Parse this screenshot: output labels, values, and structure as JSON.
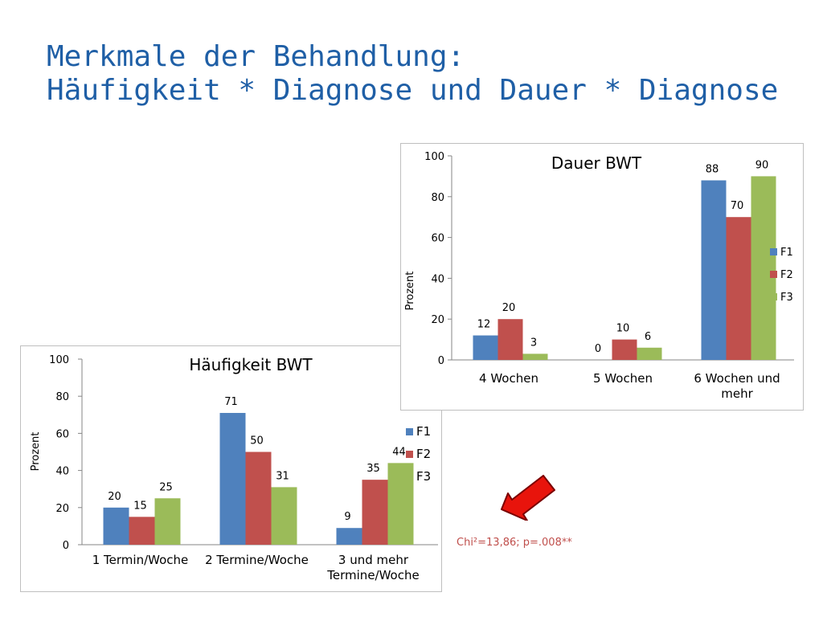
{
  "slide": {
    "title_line1": "Merkmale der Behandlung:",
    "title_line2": "Häufigkeit * Diagnose und Dauer * Diagnose",
    "title_color": "#1f5fa6",
    "stat_note": "Chi²=13,86; p=.008**",
    "stat_note_color": "#c0504d",
    "arrow_color": "#e8140c"
  },
  "chart_data": [
    {
      "id": "haeufigkeit",
      "type": "bar",
      "title": "Häufigkeit BWT",
      "ylabel": "Prozent",
      "xlabel": "",
      "ylim": [
        0,
        100
      ],
      "yticks": [
        0,
        20,
        40,
        60,
        80,
        100
      ],
      "grid": false,
      "legend_position": "right",
      "categories": [
        [
          "1 Termin/Woche"
        ],
        [
          "2 Termine/Woche"
        ],
        [
          "3 und mehr",
          "Termine/Woche"
        ]
      ],
      "series": [
        {
          "name": "F1",
          "color": "#4f81bd",
          "values": [
            20,
            71,
            9
          ]
        },
        {
          "name": "F2",
          "color": "#c0504d",
          "values": [
            15,
            50,
            35
          ]
        },
        {
          "name": "F3",
          "color": "#9bbb59",
          "values": [
            25,
            31,
            44
          ]
        }
      ]
    },
    {
      "id": "dauer",
      "type": "bar",
      "title": "Dauer BWT",
      "ylabel": "Prozent",
      "xlabel": "",
      "ylim": [
        0,
        100
      ],
      "yticks": [
        0,
        20,
        40,
        60,
        80,
        100
      ],
      "grid": false,
      "legend_position": "right",
      "categories": [
        [
          "4 Wochen"
        ],
        [
          "5 Wochen"
        ],
        [
          "6 Wochen und",
          "mehr"
        ]
      ],
      "series": [
        {
          "name": "F1",
          "color": "#4f81bd",
          "values": [
            12,
            0,
            88
          ]
        },
        {
          "name": "F2",
          "color": "#c0504d",
          "values": [
            20,
            10,
            70
          ]
        },
        {
          "name": "F3",
          "color": "#9bbb59",
          "values": [
            3,
            6,
            90
          ]
        }
      ]
    }
  ]
}
